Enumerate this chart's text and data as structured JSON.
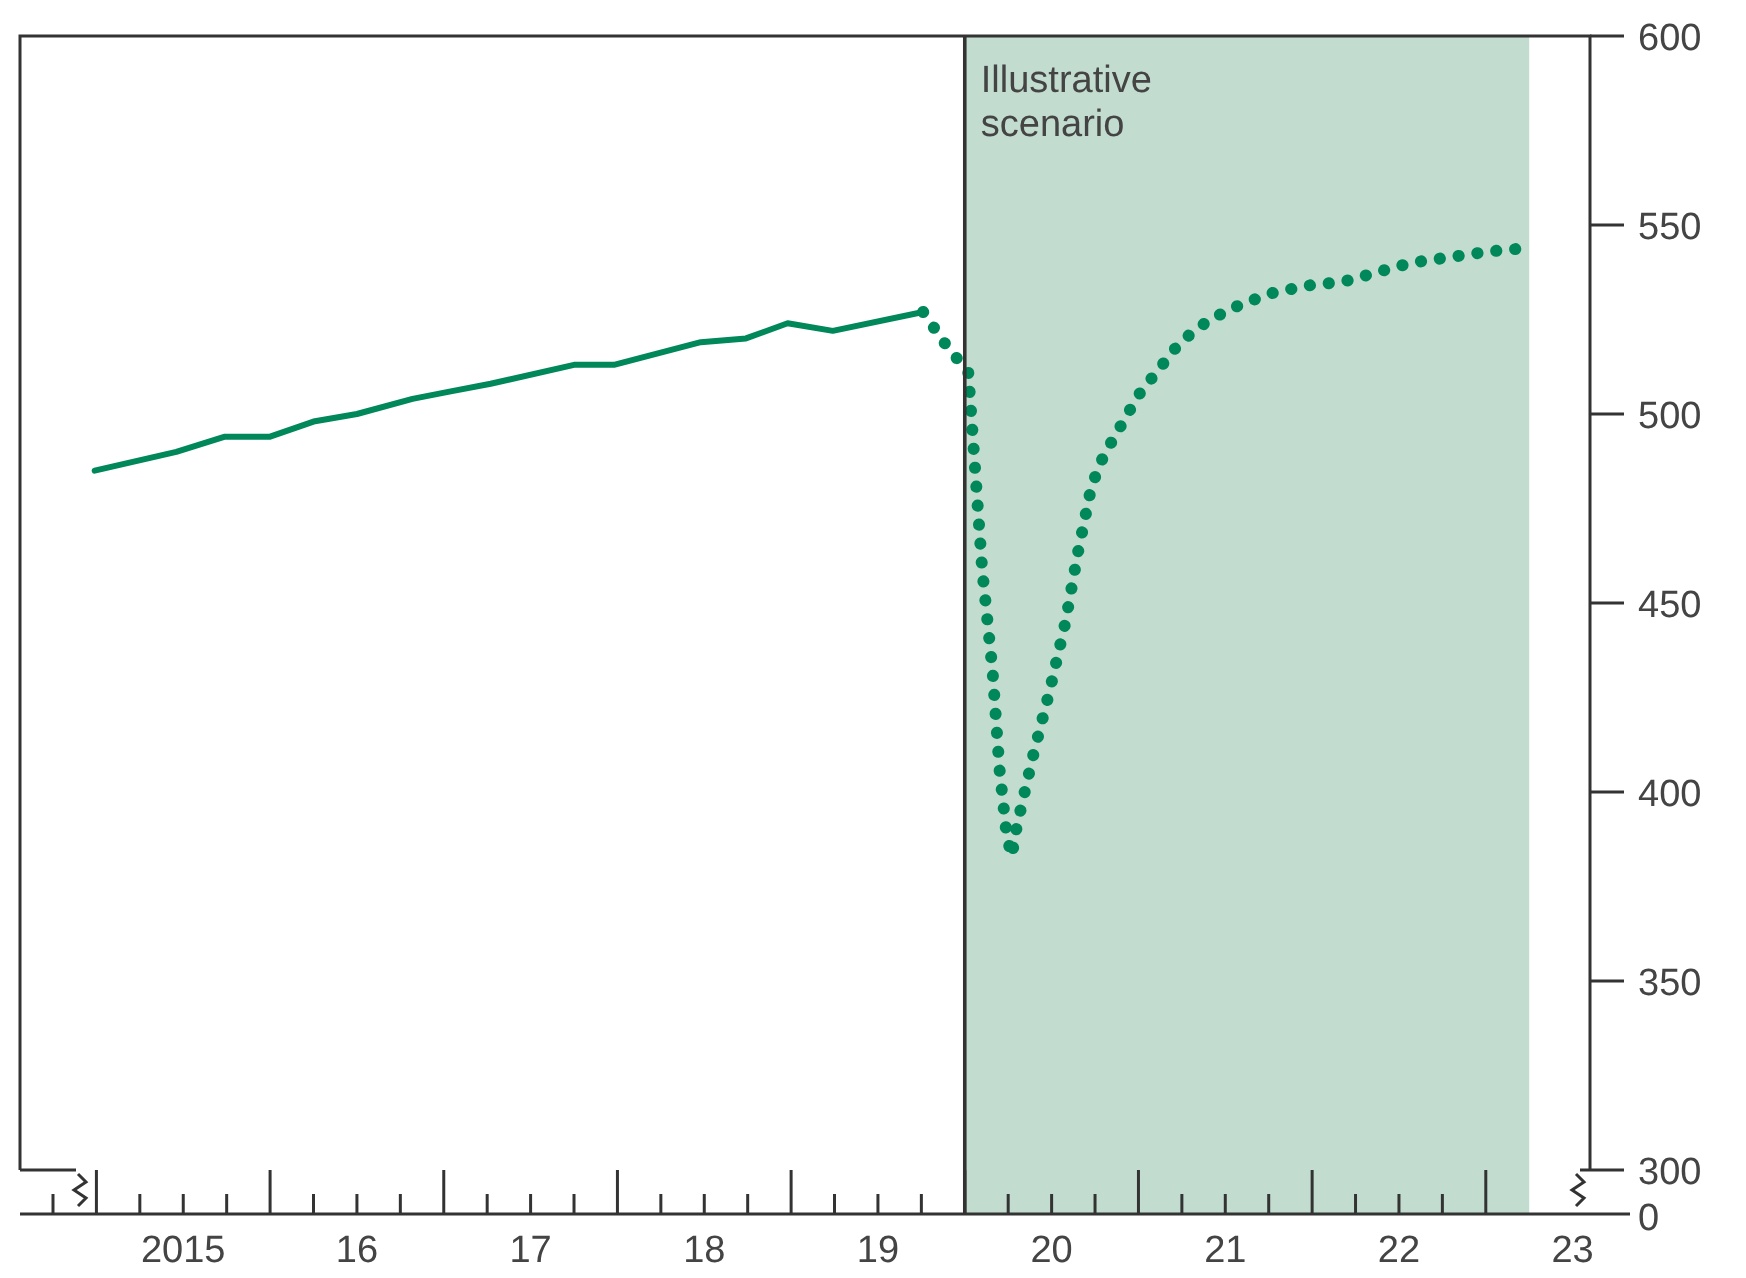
{
  "chart_data": {
    "type": "line",
    "xlim": [
      2014.06,
      2023.1
    ],
    "ylim": [
      300,
      600
    ],
    "yticks": [
      300,
      350,
      400,
      450,
      500,
      550,
      600
    ],
    "xticks": [
      {
        "value": 2015,
        "label": "2015"
      },
      {
        "value": 2016,
        "label": "16"
      },
      {
        "value": 2017,
        "label": "17"
      },
      {
        "value": 2018,
        "label": "18"
      },
      {
        "value": 2019,
        "label": "19"
      },
      {
        "value": 2020,
        "label": "20"
      },
      {
        "value": 2021,
        "label": "21"
      },
      {
        "value": 2022,
        "label": "22"
      },
      {
        "value": 2023,
        "label": "23"
      }
    ],
    "series": [
      {
        "color": "#00875a",
        "line_style": "solid",
        "x": [
          2014.49,
          2014.96,
          2015.24,
          2015.5,
          2015.75,
          2016.0,
          2016.32,
          2016.54,
          2016.77,
          2017.25,
          2017.48,
          2017.98,
          2018.24,
          2018.48,
          2018.74,
          2019.26
        ],
        "values": [
          485,
          490,
          494,
          494,
          498,
          500,
          504,
          506,
          508,
          513,
          513,
          519,
          520,
          524,
          522,
          527
        ]
      },
      {
        "color": "#00875a",
        "line_style": "dotted",
        "x": [
          2019.26,
          2019.38,
          2019.52,
          2019.56,
          2019.6,
          2019.66,
          2019.7,
          2019.74,
          2019.77,
          2019.8,
          2019.89,
          2019.99,
          2020.08,
          2020.15,
          2020.23,
          2020.3,
          2020.4,
          2020.5,
          2020.62,
          2020.74,
          2020.91,
          2021.09,
          2021.27,
          2021.48,
          2021.68,
          2022.07,
          2022.52,
          2022.76
        ],
        "values": [
          527,
          519,
          511,
          485,
          459,
          432,
          406,
          389,
          383,
          391,
          409,
          427,
          445,
          463,
          481,
          489,
          497,
          505,
          512,
          519,
          525,
          529,
          532,
          534,
          535,
          540,
          543,
          544
        ]
      }
    ],
    "ref_lines": [
      {
        "axis": "x",
        "value": 2019.5,
        "color": "#333333"
      }
    ],
    "bands": [
      {
        "axis": "x",
        "from": 2019.5,
        "to": 2022.75,
        "label": "Illustrative scenario",
        "color": "#c2ddd0"
      }
    ],
    "annotations": [
      "0"
    ],
    "grid": false,
    "legend": false,
    "marker": "none"
  }
}
